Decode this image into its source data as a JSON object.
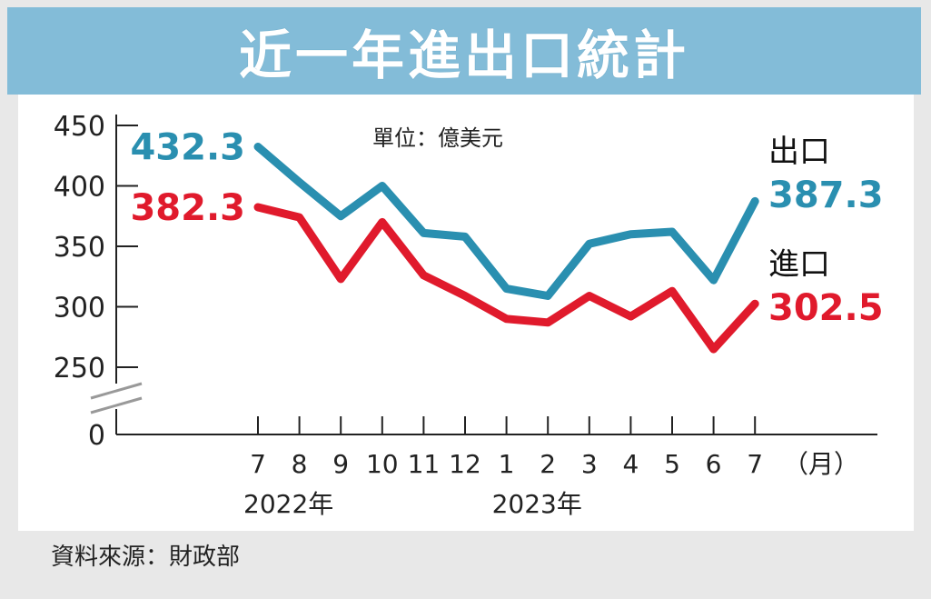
{
  "header": {
    "title": "近一年進出口統計"
  },
  "footer": {
    "source": "資料來源：財政部"
  },
  "colors": {
    "export": "#2a8fb0",
    "import": "#e01a2c",
    "title_bg": "#83bcd8"
  },
  "chart_data": {
    "type": "line",
    "title": "近一年進出口統計",
    "unit": "單位：億美元",
    "categories": [
      "7",
      "8",
      "9",
      "10",
      "11",
      "12",
      "1",
      "2",
      "3",
      "4",
      "5",
      "6",
      "7"
    ],
    "x_unit": "（月）",
    "year_labels": [
      {
        "label": "2022年",
        "at": "7"
      },
      {
        "label": "2023年",
        "at": "1"
      }
    ],
    "y_ticks": [
      "0",
      "250",
      "300",
      "350",
      "400",
      "450"
    ],
    "ylim": [
      250,
      450
    ],
    "axis_break": true,
    "series": [
      {
        "name": "出口",
        "color": "#2a8fb0",
        "values": [
          432.3,
          403,
          375,
          400,
          361,
          358,
          315,
          309,
          352,
          360,
          362,
          322,
          387.3
        ],
        "start_label": "432.3",
        "end_label": "387.3"
      },
      {
        "name": "進口",
        "color": "#e01a2c",
        "values": [
          382.3,
          374,
          323,
          370,
          326,
          309,
          290,
          287,
          309,
          292,
          313,
          265,
          302.5
        ],
        "start_label": "382.3",
        "end_label": "302.5"
      }
    ]
  }
}
